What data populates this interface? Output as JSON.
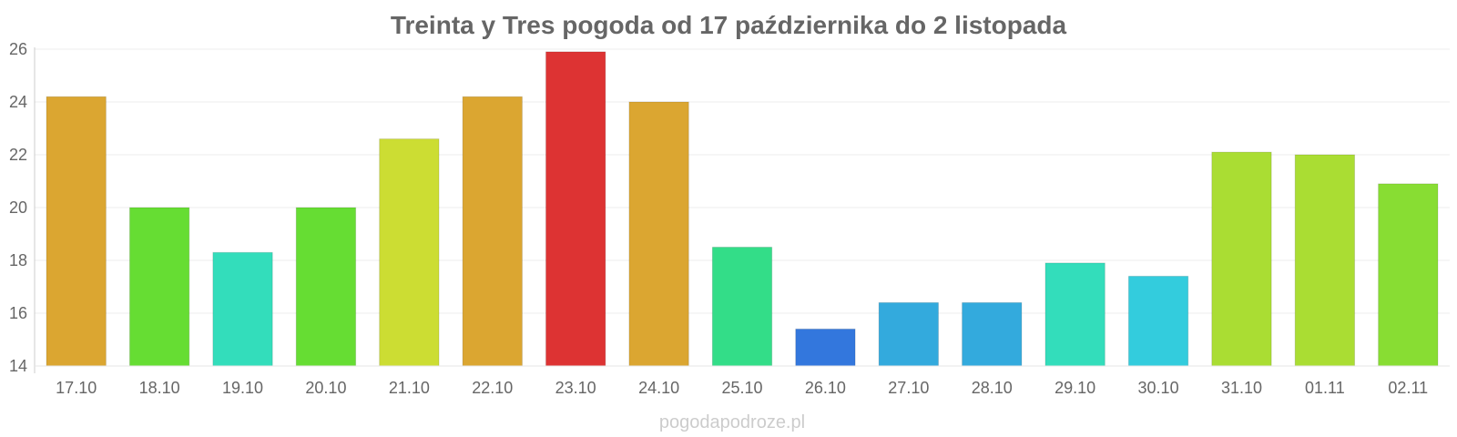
{
  "chart_data": {
    "type": "bar",
    "title": "Treinta y Tres pogoda od 17 października do 2 listopada",
    "xlabel": "",
    "ylabel": "",
    "categories": [
      "17.10",
      "18.10",
      "19.10",
      "20.10",
      "21.10",
      "22.10",
      "23.10",
      "24.10",
      "25.10",
      "26.10",
      "27.10",
      "28.10",
      "29.10",
      "30.10",
      "31.10",
      "01.11",
      "02.11"
    ],
    "values": [
      24.2,
      20.0,
      18.3,
      20.0,
      22.6,
      24.2,
      25.9,
      24.0,
      18.5,
      15.4,
      16.4,
      16.4,
      17.9,
      17.4,
      22.1,
      22.0,
      20.9
    ],
    "colors": [
      "#dba631",
      "#66dd33",
      "#33ddbb",
      "#66dd33",
      "#ccdd33",
      "#dba631",
      "#dd3333",
      "#dba631",
      "#33dd88",
      "#3377dd",
      "#33aadd",
      "#33aadd",
      "#33ddbb",
      "#33ccdd",
      "#aadd33",
      "#aadd33",
      "#88dd33"
    ],
    "ylim": [
      14,
      26
    ],
    "yticks": [
      "14",
      "16",
      "18",
      "20",
      "22",
      "24",
      "26"
    ],
    "grid": true,
    "legend": "none"
  },
  "watermark": "pogodapodroze.pl"
}
